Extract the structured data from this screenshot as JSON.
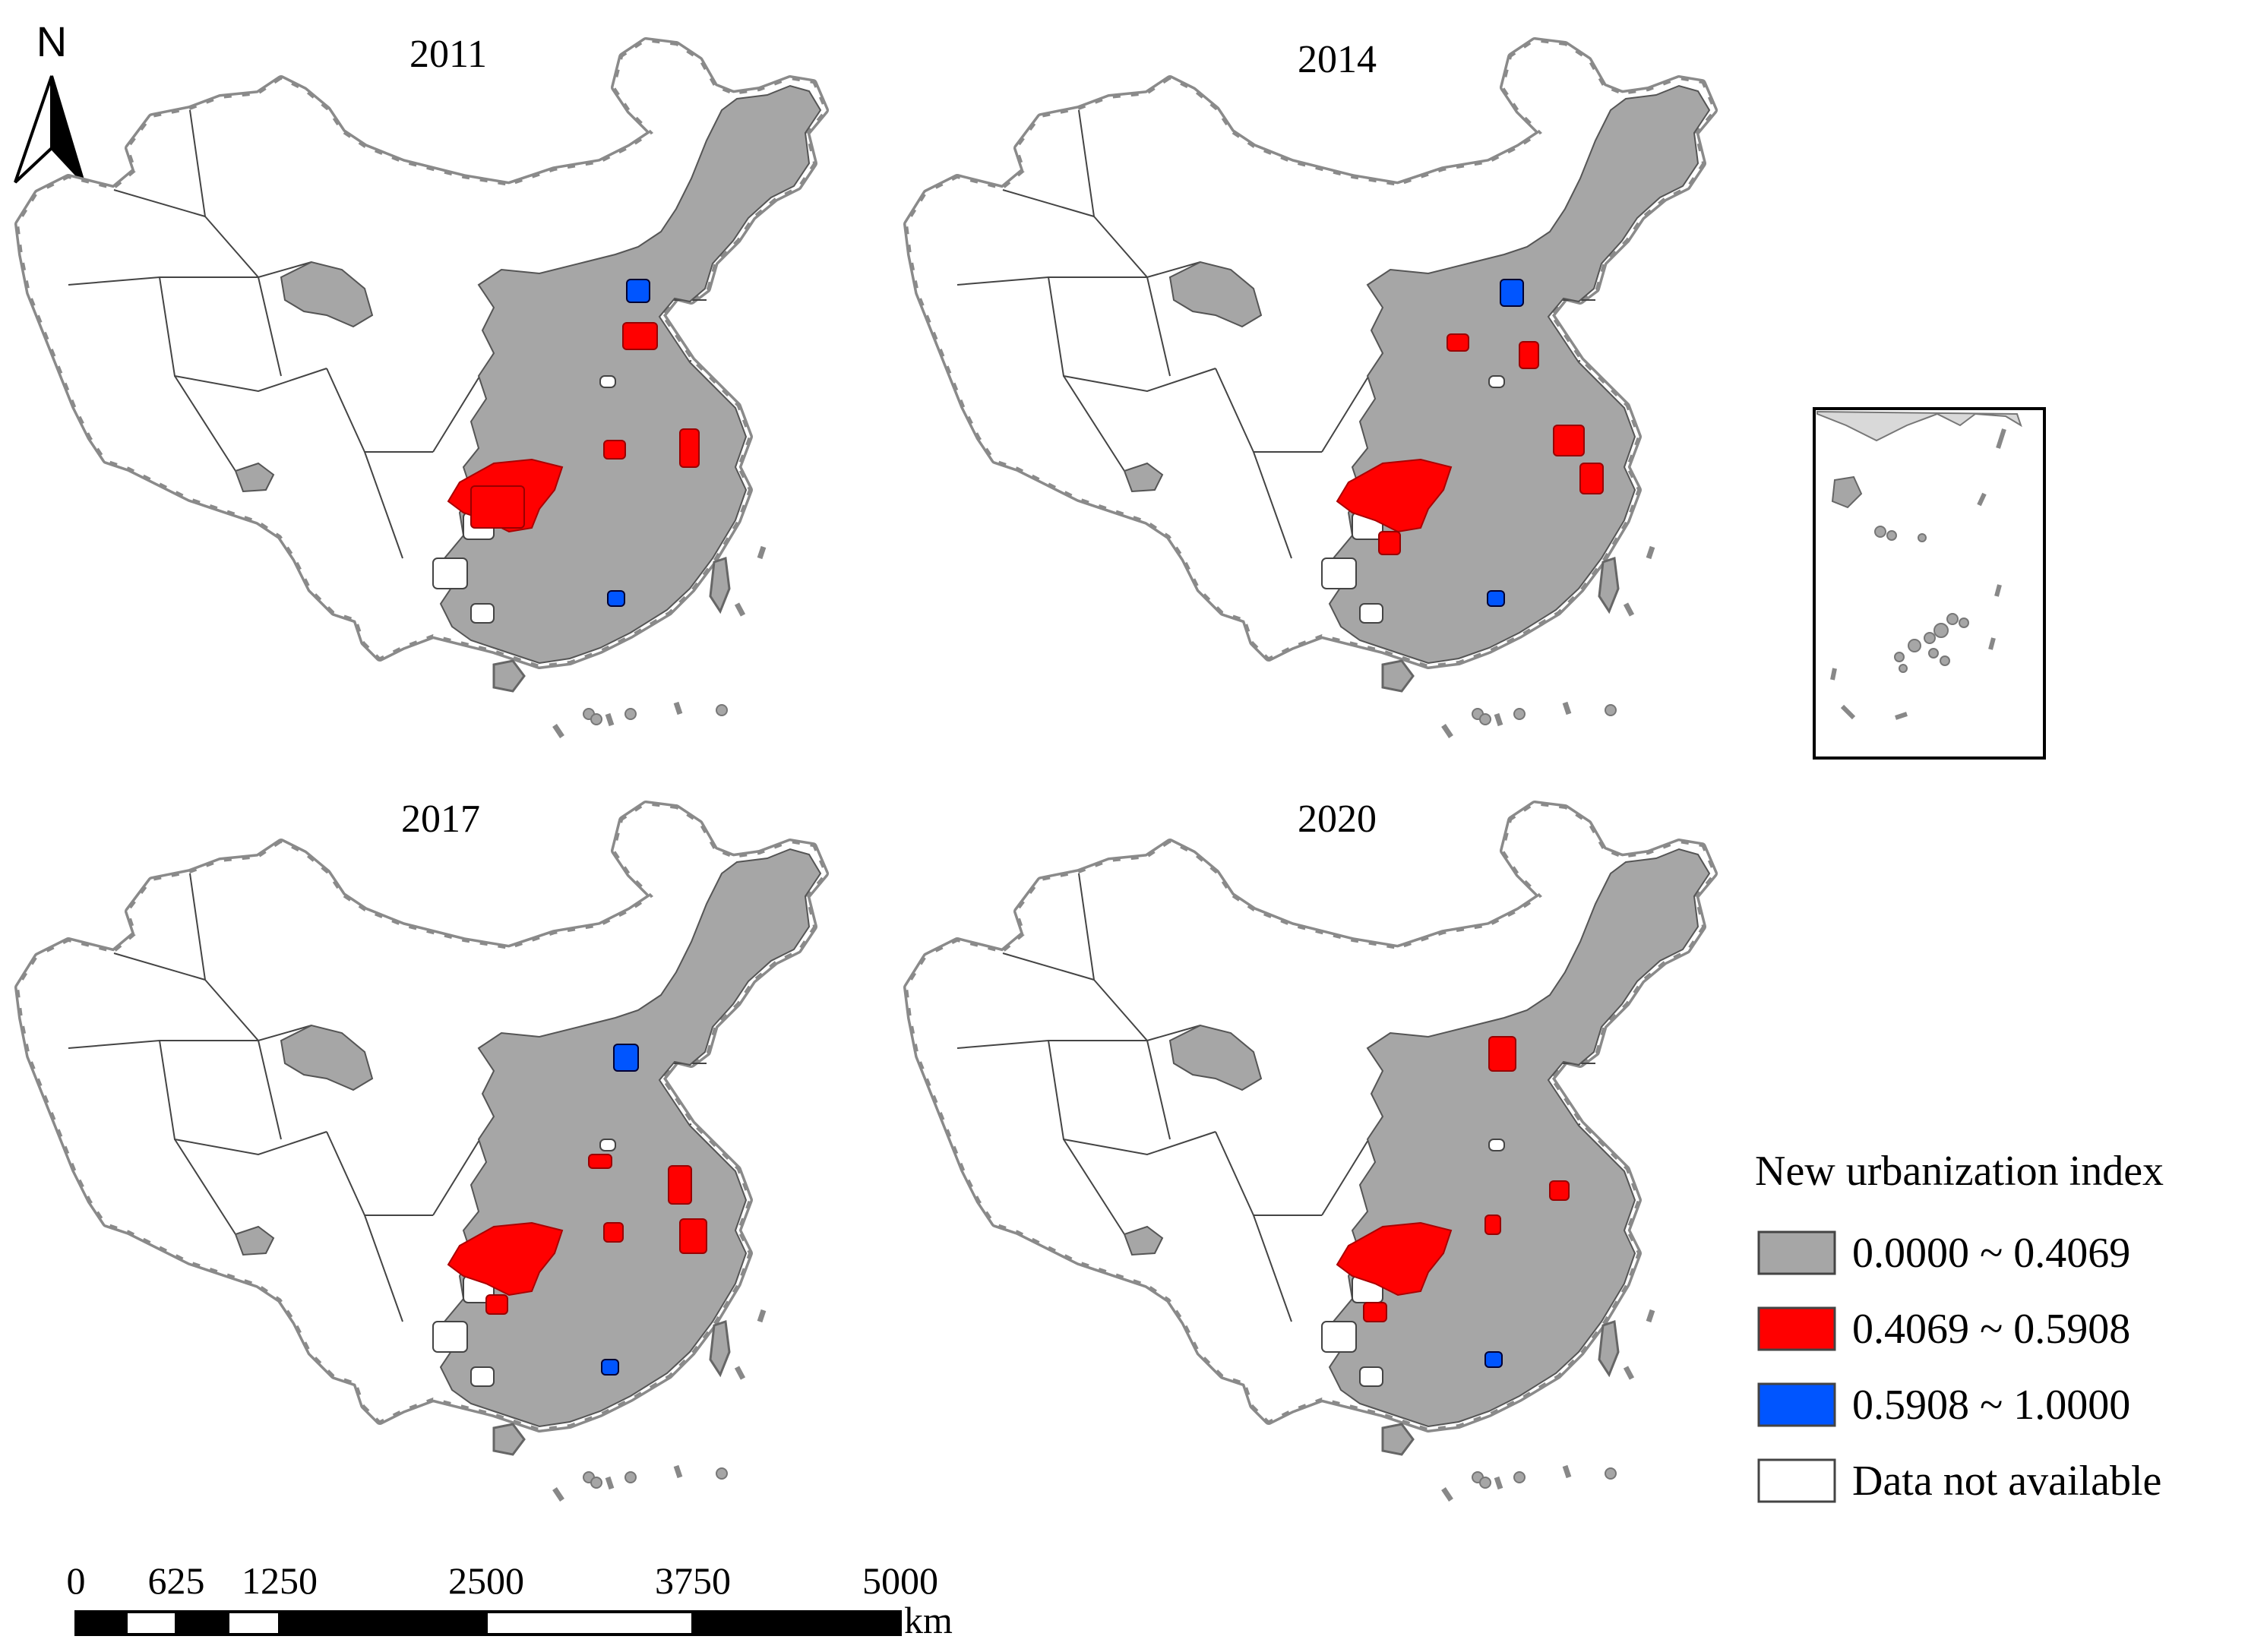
{
  "north_arrow": {
    "label": "N"
  },
  "panels": [
    {
      "year": "2011",
      "red": [
        [
          620,
          640,
          70,
          55
        ],
        [
          820,
          425,
          45,
          35
        ],
        [
          795,
          580,
          28,
          24
        ],
        [
          895,
          565,
          25,
          50
        ]
      ],
      "blue": [
        [
          825,
          368,
          30,
          30
        ],
        [
          800,
          778,
          22,
          20
        ]
      ],
      "bigred": true
    },
    {
      "year": "2014",
      "red": [
        [
          1905,
          440,
          28,
          22
        ],
        [
          2000,
          450,
          25,
          35
        ],
        [
          2045,
          560,
          40,
          40
        ],
        [
          2080,
          610,
          30,
          40
        ],
        [
          1815,
          700,
          28,
          30
        ]
      ],
      "blue": [
        [
          1975,
          368,
          30,
          35
        ],
        [
          1958,
          778,
          22,
          20
        ]
      ],
      "bigred": true
    },
    {
      "year": "2017",
      "red": [
        [
          775,
          1520,
          30,
          18
        ],
        [
          795,
          1610,
          25,
          25
        ],
        [
          880,
          1535,
          30,
          50
        ],
        [
          895,
          1605,
          35,
          45
        ],
        [
          640,
          1705,
          28,
          25
        ]
      ],
      "blue": [
        [
          808,
          1375,
          32,
          35
        ],
        [
          792,
          1790,
          22,
          20
        ]
      ],
      "bigred": true
    },
    {
      "year": "2020",
      "red": [
        [
          1960,
          1365,
          35,
          45
        ],
        [
          2040,
          1555,
          25,
          25
        ],
        [
          1955,
          1600,
          20,
          25
        ],
        [
          1795,
          1715,
          30,
          25
        ]
      ],
      "blue": [
        [
          1955,
          1780,
          22,
          20
        ]
      ],
      "bigred": true
    }
  ],
  "legend": {
    "title": "New urbanization index",
    "items": [
      {
        "label": "0.0000 ~ 0.4069",
        "color": "#a6a6a6"
      },
      {
        "label": "0.4069 ~ 0.5908",
        "color": "#ff0000"
      },
      {
        "label": "0.5908 ~ 1.0000",
        "color": "#0055ff"
      },
      {
        "label": "Data not available",
        "color": "#ffffff"
      }
    ]
  },
  "scale_bar": {
    "ticks": [
      "0",
      "625",
      "1250",
      "2500",
      "3750",
      "5000"
    ],
    "unit": "km"
  },
  "colors": {
    "gray": "#a6a6a6",
    "red": "#ff0000",
    "blue": "#0055ff",
    "border": "#555555",
    "outline": "#8a8a8a"
  }
}
